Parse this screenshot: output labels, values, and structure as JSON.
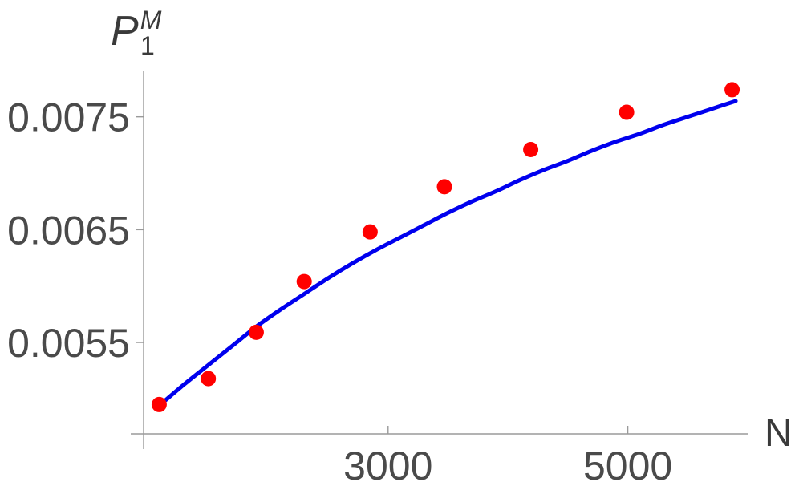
{
  "chart_data": {
    "type": "scatter",
    "ylabel": {
      "base": "P",
      "subscript": "1",
      "superscript": "M"
    },
    "xlabel": "N",
    "x_ticks": [
      3000,
      5000
    ],
    "x_tick_labels": [
      "3000",
      "5000"
    ],
    "y_ticks": [
      0.0055,
      0.0065,
      0.0075
    ],
    "y_tick_labels": [
      "0.0055",
      "0.0065",
      "0.0075"
    ],
    "xlim": [
      960,
      6000
    ],
    "ylim": [
      0.00469,
      0.00791
    ],
    "series": [
      {
        "kind": "points",
        "color": "#ff0000",
        "x": [
          1090,
          1500,
          1900,
          2300,
          2850,
          3470,
          4190,
          4990,
          5870
        ],
        "y": [
          0.00495,
          0.00518,
          0.00559,
          0.00604,
          0.00648,
          0.00688,
          0.00721,
          0.00754,
          0.00774
        ]
      },
      {
        "kind": "fit-curve",
        "color": "#0000ee",
        "x": [
          1090,
          1300,
          1500,
          1700,
          1900,
          2100,
          2300,
          2500,
          2700,
          2900,
          3100,
          3300,
          3500,
          3700,
          3900,
          4100,
          4300,
          4500,
          4700,
          4900,
          5100,
          5300,
          5500,
          5700,
          5900
        ],
        "y": [
          0.00494,
          0.00513,
          0.0053,
          0.00547,
          0.00564,
          0.00579,
          0.00593,
          0.00607,
          0.0062,
          0.00632,
          0.00643,
          0.00654,
          0.00665,
          0.00675,
          0.00684,
          0.00694,
          0.00703,
          0.00711,
          0.0072,
          0.00728,
          0.00735,
          0.00743,
          0.0075,
          0.00757,
          0.00764
        ]
      }
    ]
  }
}
